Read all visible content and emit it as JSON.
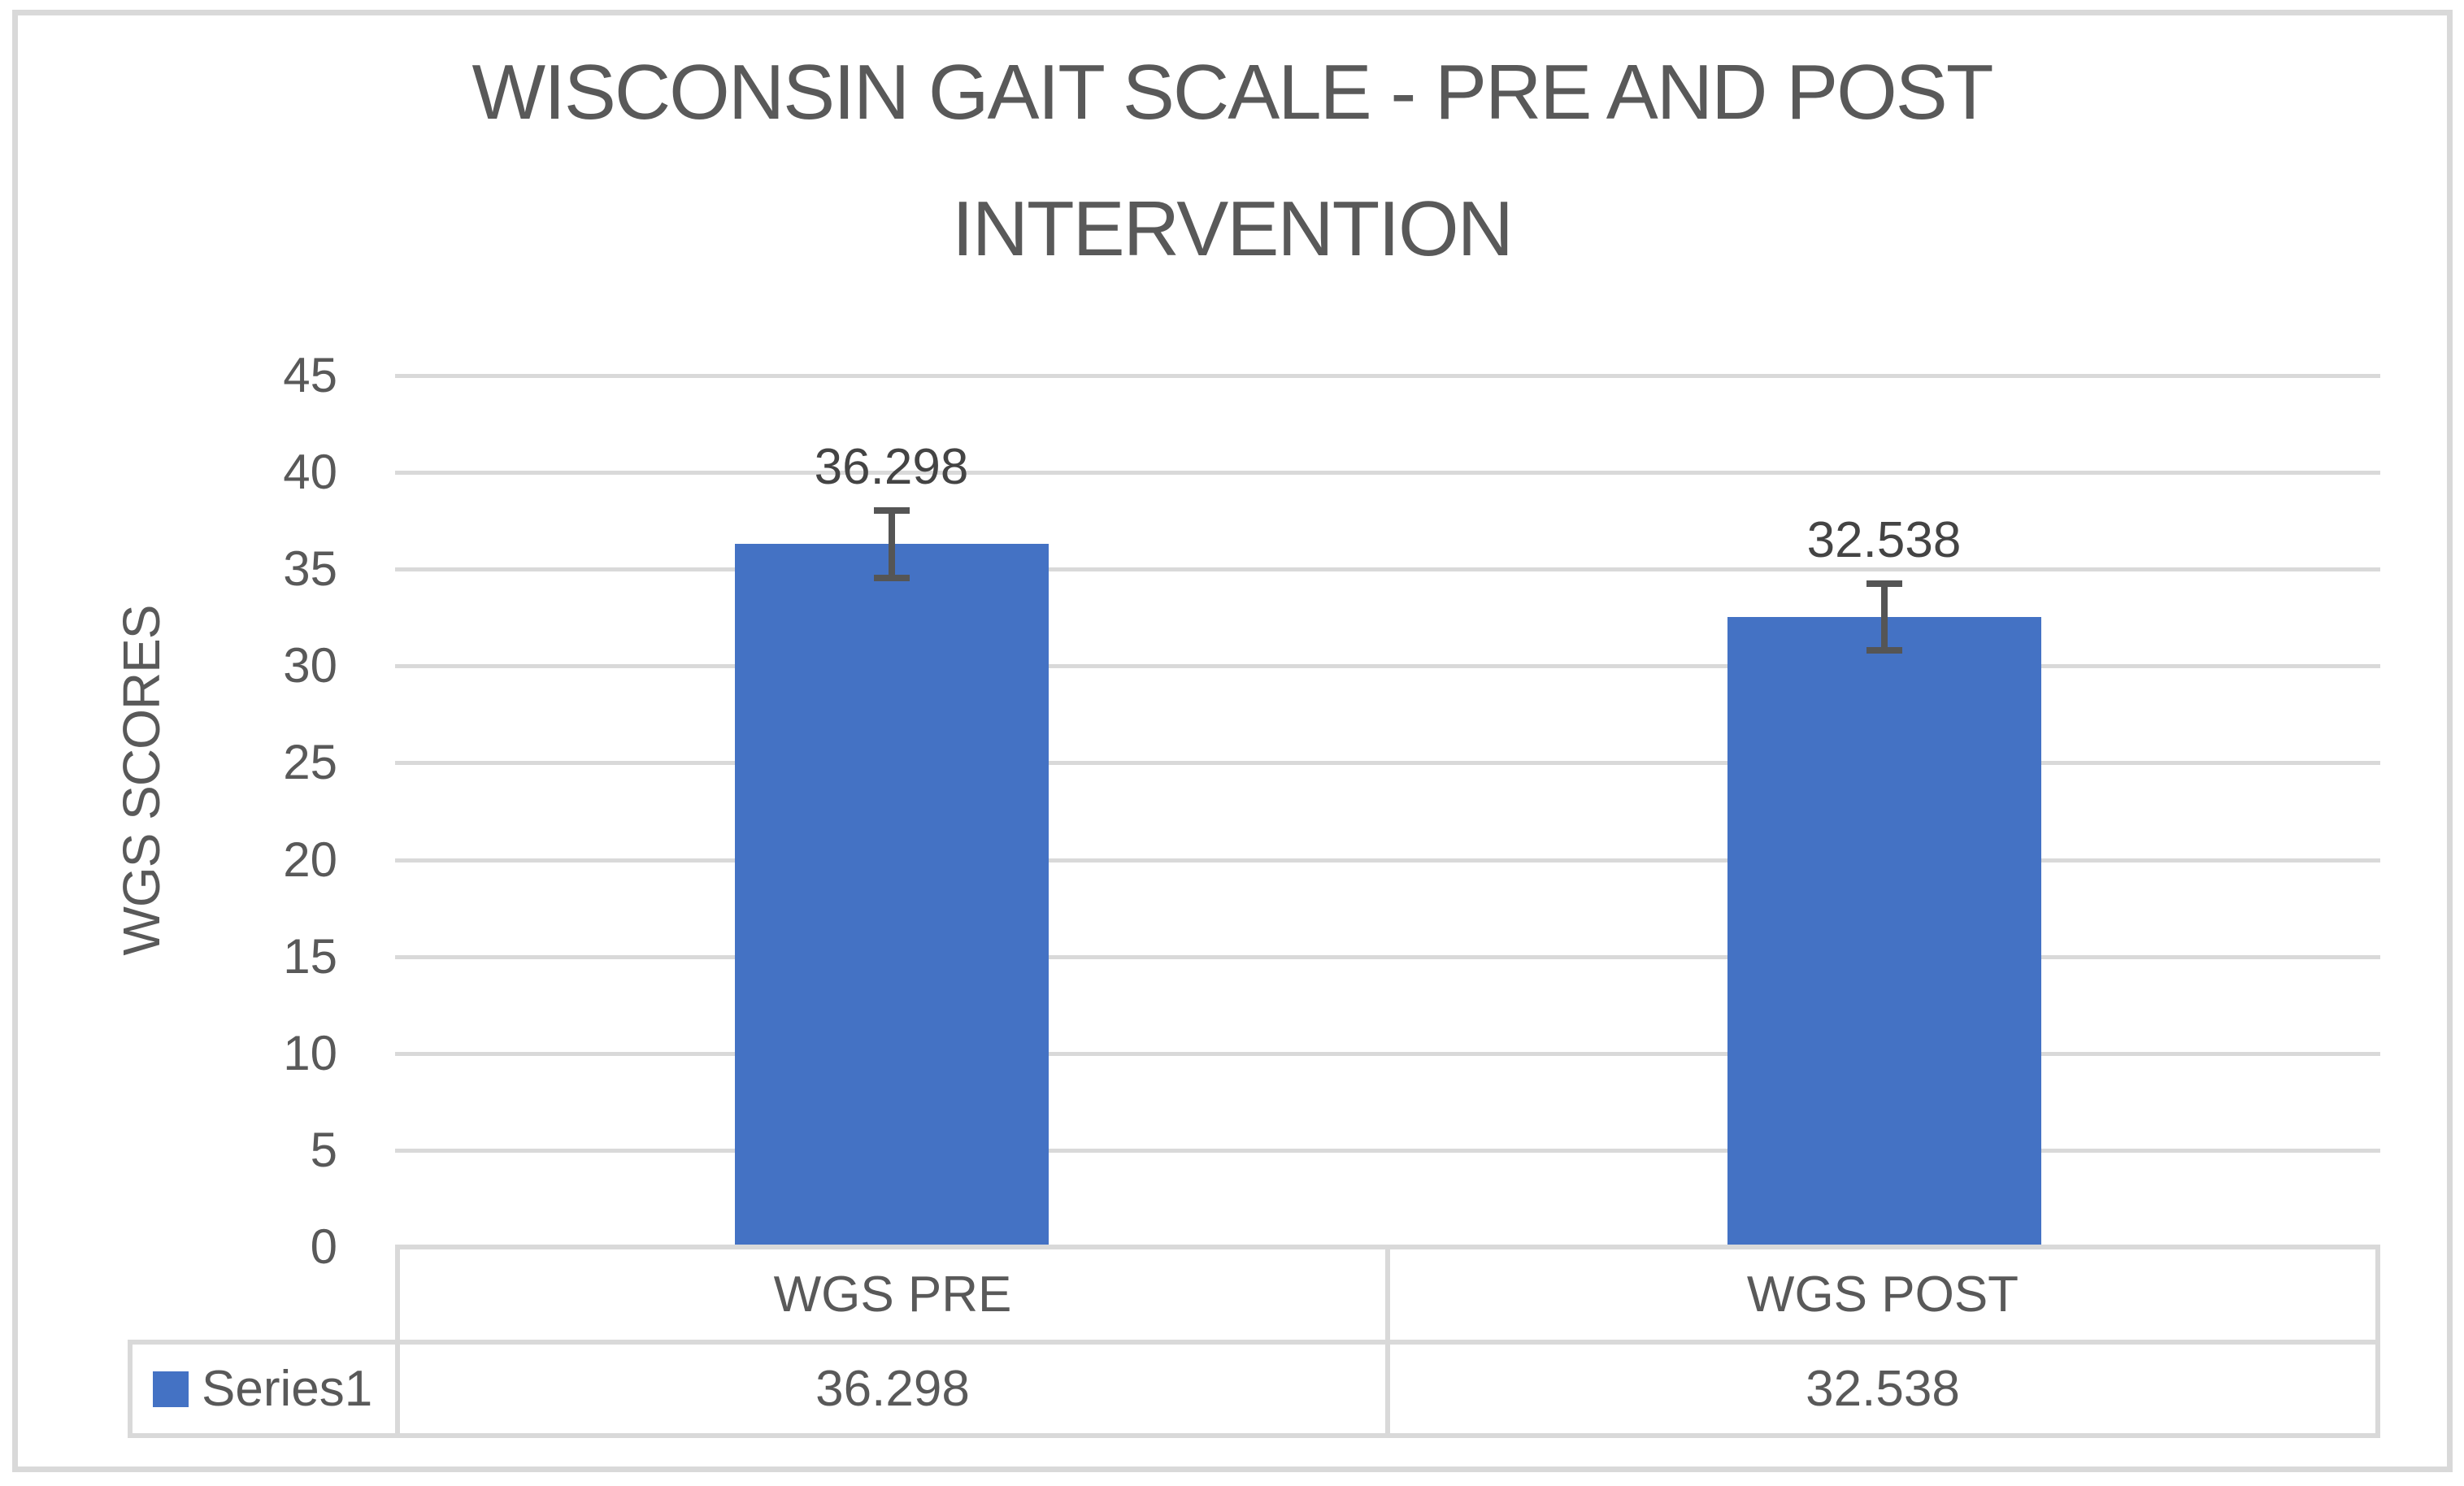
{
  "figure": {
    "background": "#FFFFFF",
    "border_color": "#D9D9D9"
  },
  "chart_data": {
    "type": "bar",
    "title": "WISCONSIN GAIT SCALE - PRE AND POST INTERVENTION",
    "title_lines": [
      "WISCONSIN GAIT SCALE - PRE AND POST",
      "INTERVENTION"
    ],
    "categories": [
      "WGS PRE",
      "WGS POST"
    ],
    "series": [
      {
        "name": "Series1",
        "values": [
          36.298,
          32.538
        ],
        "color": "#4472C4"
      }
    ],
    "data_labels": [
      "36.298",
      "32.538"
    ],
    "error_bars": {
      "visible": true,
      "approx_plus_minus": 1.9
    },
    "xlabel": "",
    "ylabel": "WGS SCORES",
    "ylim": [
      0,
      45
    ],
    "ytick_step": 5,
    "yticks": [
      45,
      40,
      35,
      30,
      25,
      20,
      15,
      10,
      5,
      0
    ],
    "grid": true,
    "gridline_color": "#D9D9D9",
    "axis_text_color": "#595959",
    "data_label_color": "#444444",
    "error_bar_color": "#555555",
    "legend_position": "bottom-data-table",
    "data_table": {
      "legend_label": "Series1",
      "columns": [
        "WGS PRE",
        "WGS POST"
      ],
      "values": [
        "36.298",
        "32.538"
      ]
    }
  }
}
